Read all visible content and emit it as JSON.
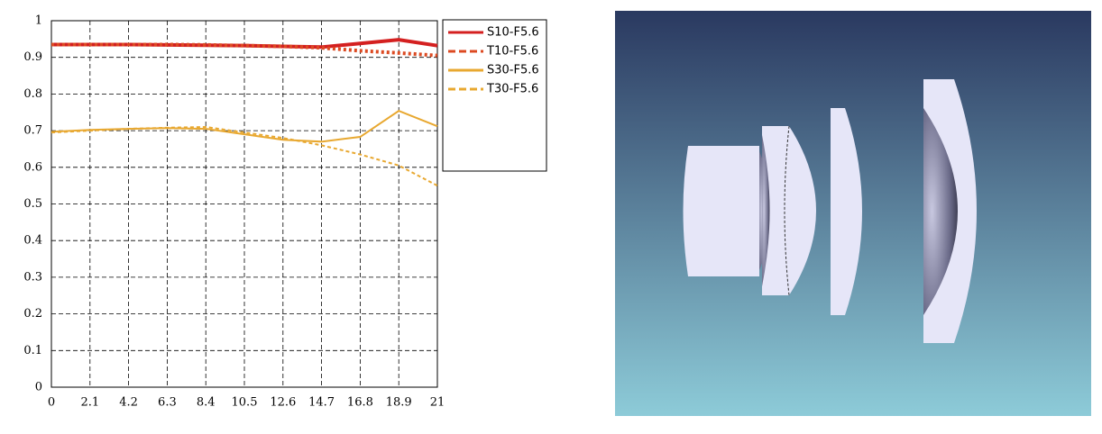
{
  "chart_data": {
    "type": "line",
    "x": [
      0,
      2.1,
      4.2,
      6.3,
      8.4,
      10.5,
      12.6,
      14.7,
      16.8,
      18.9,
      21
    ],
    "series": [
      {
        "name": "S10-F5.6",
        "color": "#d42020",
        "dash": false,
        "values": [
          0.935,
          0.935,
          0.935,
          0.934,
          0.933,
          0.932,
          0.93,
          0.928,
          0.938,
          0.948,
          0.932
        ]
      },
      {
        "name": "T10-F5.6",
        "color": "#dc4a22",
        "dash": true,
        "values": [
          0.935,
          0.935,
          0.935,
          0.935,
          0.934,
          0.932,
          0.93,
          0.926,
          0.918,
          0.912,
          0.905
        ]
      },
      {
        "name": "S30-F5.6",
        "color": "#e8a830",
        "dash": false,
        "values": [
          0.697,
          0.702,
          0.705,
          0.707,
          0.705,
          0.69,
          0.675,
          0.67,
          0.683,
          0.754,
          0.712
        ]
      },
      {
        "name": "T30-F5.6",
        "color": "#e8a830",
        "dash": true,
        "values": [
          0.695,
          0.7,
          0.705,
          0.708,
          0.71,
          0.695,
          0.68,
          0.66,
          0.635,
          0.605,
          0.55
        ]
      }
    ],
    "xlim": [
      0,
      21
    ],
    "xticks": [
      0,
      2.1,
      4.2,
      6.3,
      8.4,
      10.5,
      12.6,
      14.7,
      16.8,
      18.9,
      21
    ],
    "ylim": [
      0,
      1
    ],
    "yticks": [
      0,
      0.1,
      0.2,
      0.3,
      0.4,
      0.5,
      0.6,
      0.7,
      0.8,
      0.9,
      1
    ],
    "grid": true
  }
}
